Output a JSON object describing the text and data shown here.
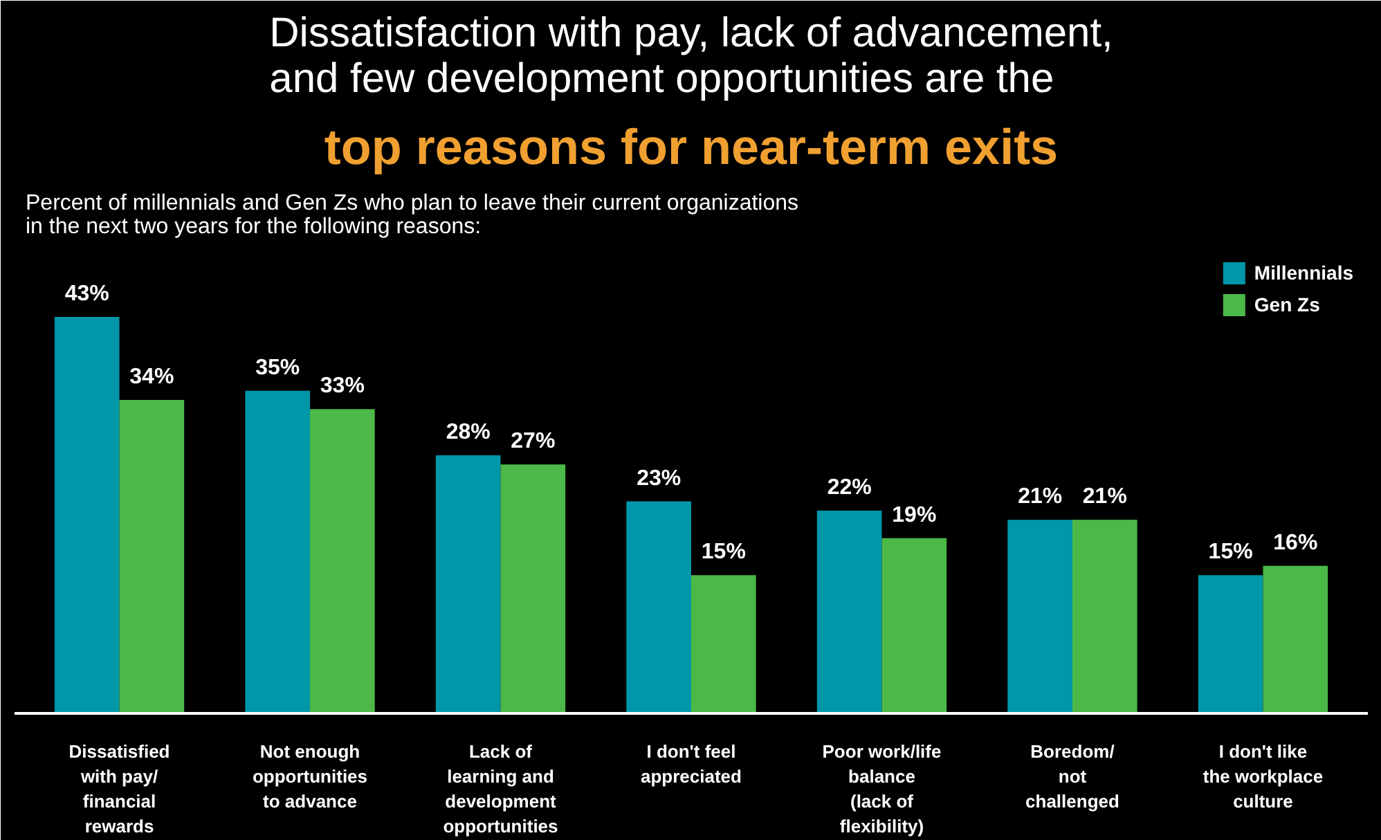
{
  "chart_data": {
    "type": "bar",
    "title": "Dissatisfaction with pay, lack of advancement,\nand few development opportunities are the",
    "subtitle": "top reasons for near-term exits",
    "annotations": [
      "Percent of millennials and Gen Zs who plan to leave their current organizations\nin the next two years for the following reasons:"
    ],
    "categories": [
      "Dissatisfied\nwith pay/\nfinancial\nrewards",
      "Not enough\nopportunities\nto advance",
      "Lack of\nlearning and\ndevelopment\nopportunities",
      "I don't feel\nappreciated",
      "Poor work/life\nbalance\n(lack of\nflexibility)",
      "Boredom/\nnot\nchallenged",
      "I don't like\nthe workplace\nculture"
    ],
    "series": [
      {
        "name": "Millennials",
        "color": "#0097a9",
        "values": [
          43,
          35,
          28,
          23,
          22,
          21,
          15
        ],
        "value_labels": [
          "43%",
          "35%",
          "28%",
          "23%",
          "22%",
          "21%",
          "15%"
        ]
      },
      {
        "name": "Gen Zs",
        "color": "#4cb848",
        "values": [
          34,
          33,
          27,
          15,
          19,
          21,
          16
        ],
        "value_labels": [
          "34%",
          "33%",
          "27%",
          "15%",
          "19%",
          "21%",
          "16%"
        ]
      }
    ],
    "grid": false,
    "legend": "top right"
  }
}
